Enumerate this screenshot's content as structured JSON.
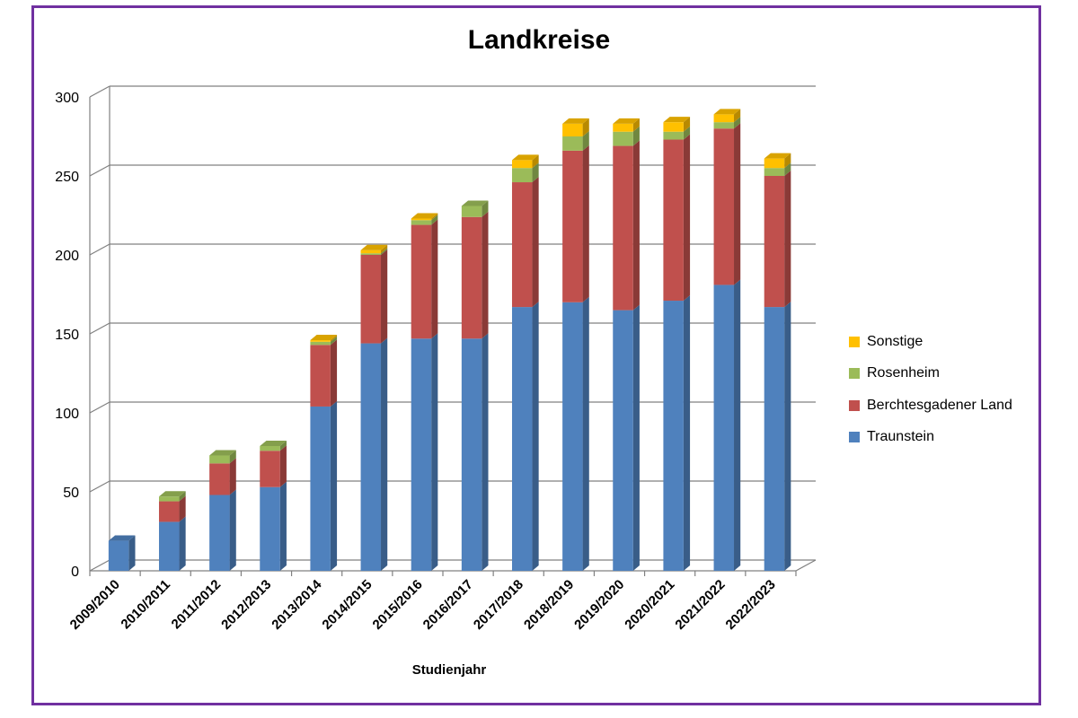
{
  "chart_data": {
    "type": "bar",
    "stacked": true,
    "style": "3d-column",
    "title": "Landkreise",
    "xlabel": "Studienjahr",
    "ylabel": "",
    "ylim": [
      0,
      300
    ],
    "yticks": [
      0,
      50,
      100,
      150,
      200,
      250,
      300
    ],
    "grid": true,
    "legend_position": "right",
    "categories": [
      "2009/2010",
      "2010/2011",
      "2011/2012",
      "2012/2013",
      "2013/2014",
      "2014/2015",
      "2015/2016",
      "2016/2017",
      "2017/2018",
      "2018/2019",
      "2019/2020",
      "2020/2021",
      "2021/2022",
      "2022/2023"
    ],
    "series": [
      {
        "name": "Traunstein",
        "color": "#4f81bd",
        "values": [
          19,
          31,
          48,
          53,
          104,
          144,
          147,
          147,
          167,
          170,
          165,
          171,
          181,
          167
        ]
      },
      {
        "name": "Berchtesgadener Land",
        "color": "#c0504d",
        "values": [
          0,
          13,
          20,
          23,
          39,
          56,
          72,
          77,
          79,
          96,
          104,
          102,
          99,
          83
        ]
      },
      {
        "name": "Rosenheim",
        "color": "#9bbb59",
        "values": [
          0,
          3,
          5,
          3,
          2,
          1,
          3,
          7,
          9,
          9,
          9,
          5,
          4,
          5
        ]
      },
      {
        "name": "Sonstige",
        "color": "#ffc000",
        "values": [
          0,
          0,
          0,
          0,
          1,
          2,
          1,
          0,
          5,
          8,
          5,
          6,
          5,
          6
        ]
      }
    ]
  }
}
